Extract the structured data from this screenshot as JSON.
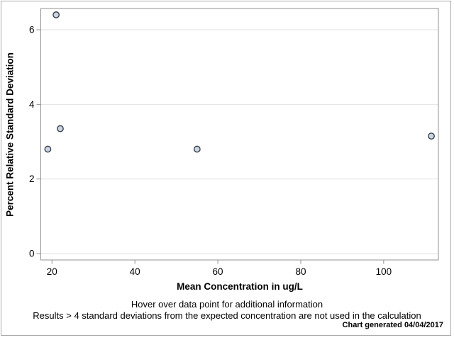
{
  "chart": {
    "y_axis_title": "Percent Relative Standard Deviation",
    "x_axis_title": "Mean Concentration in ug/L"
  },
  "footer": {
    "line1": "Hover over data point for additional information",
    "line2": "Results > 4 standard deviations from the expected concentration are not used in the calculation",
    "generated_note": "Chart generated 04/04/2017"
  },
  "chart_data": {
    "type": "scatter",
    "title": "",
    "xlabel": "Mean Concentration in ug/L",
    "ylabel": "Percent Relative Standard Deviation",
    "points": [
      {
        "x": 19,
        "y": 2.8
      },
      {
        "x": 21,
        "y": 6.4
      },
      {
        "x": 22,
        "y": 3.35
      },
      {
        "x": 55,
        "y": 2.8
      },
      {
        "x": 111.5,
        "y": 3.15
      }
    ],
    "x_ticks": [
      "20",
      "40",
      "60",
      "80",
      "100"
    ],
    "y_ticks": [
      "0",
      "2",
      "4",
      "6"
    ],
    "xlim": [
      17.3,
      113.2
    ],
    "ylim": [
      -0.17,
      6.57
    ],
    "grid": "horizontal-only",
    "legend": "none",
    "colors": {
      "marker_fill": "#ccd5e3",
      "marker_stroke": "#363e4a",
      "gridline": "#e2e2e2",
      "axis_frame": "#919191",
      "outer_frame": "#a9a9a9",
      "background": "#ffffff",
      "text": "#000000"
    }
  }
}
